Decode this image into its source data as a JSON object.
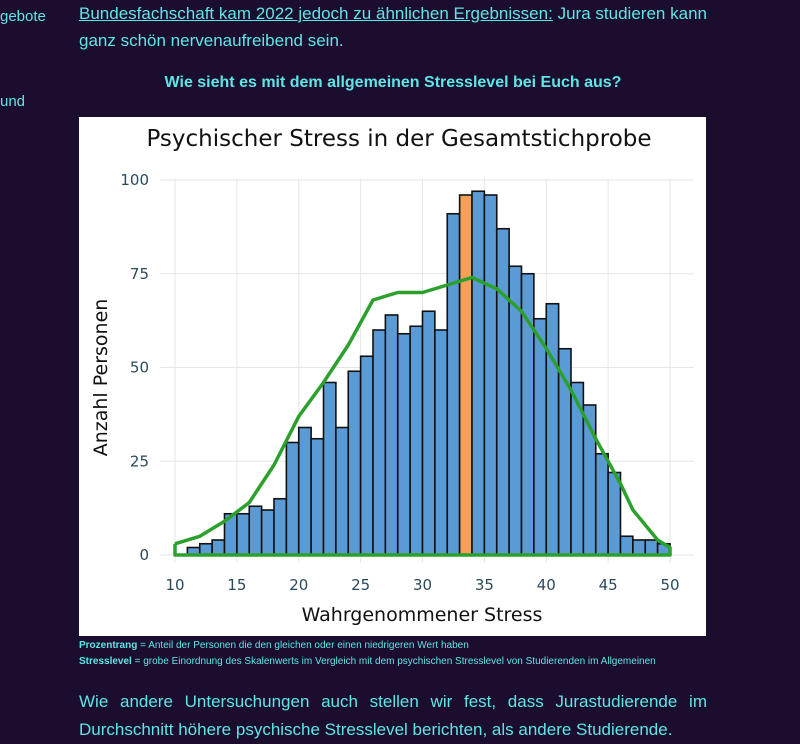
{
  "sidebar": {
    "fragment_1": "gebote",
    "fragment_2": "und"
  },
  "article": {
    "intro_link": "Bundesfachschaft kam 2022 jedoch zu ähnlichen Ergebnissen:",
    "intro_rest": " Jura studieren kann ganz schön nervenaufreibend sein.",
    "question": "Wie sieht es mit dem allgemeinen Stresslevel bei Euch aus?",
    "note1_term": "Prozentrang",
    "note1_text": " = Anteil der Personen die den gleichen oder einen niedrigeren Wert haben",
    "note2_term": "Stresslevel",
    "note2_text": " = grobe Einordnung des Skalenwerts im Vergleich mit dem psychischen Stresslevel von Studierenden im Allgemeinen",
    "outro": "Wie andere Untersuchungen auch stellen wir fest, dass Jurastudierende im Durchschnitt höhere psychische Stresslevel berichten, als andere Studierende."
  },
  "chart_data": {
    "type": "bar",
    "title": "Psychischer Stress in der Gesamtstichprobe",
    "xlabel": "Wahrgenommener Stress",
    "ylabel": "Anzahl Personen",
    "xlim": [
      10,
      50
    ],
    "ylim": [
      0,
      100
    ],
    "x_ticks": [
      10,
      15,
      20,
      25,
      30,
      35,
      40,
      45,
      50
    ],
    "y_ticks": [
      0,
      25,
      50,
      75,
      100
    ],
    "grid": true,
    "bin_width": 1,
    "bins_start": [
      10,
      11,
      12,
      13,
      14,
      15,
      16,
      17,
      18,
      19,
      20,
      21,
      22,
      23,
      24,
      25,
      26,
      27,
      28,
      29,
      30,
      31,
      32,
      33,
      34,
      35,
      36,
      37,
      38,
      39,
      40,
      41,
      42,
      43,
      44,
      45,
      46,
      47,
      48,
      49
    ],
    "values": [
      0,
      2,
      3,
      4,
      11,
      11,
      13,
      12,
      15,
      30,
      34,
      31,
      46,
      34,
      49,
      53,
      60,
      64,
      59,
      61,
      65,
      60,
      91,
      96,
      97,
      96,
      87,
      77,
      75,
      63,
      67,
      55,
      46,
      40,
      27,
      22,
      5,
      4,
      4,
      3
    ],
    "bar_color": "#5b9bd5",
    "highlight_bin_start": 33,
    "highlight_color": "#f4a155",
    "curve_color": "#2ca02c",
    "density_curve": [
      [
        10,
        3
      ],
      [
        12,
        5
      ],
      [
        14,
        9
      ],
      [
        16,
        14
      ],
      [
        18,
        24
      ],
      [
        20,
        37
      ],
      [
        22,
        46
      ],
      [
        24,
        56
      ],
      [
        26,
        68
      ],
      [
        28,
        70
      ],
      [
        30,
        70
      ],
      [
        32,
        72
      ],
      [
        34,
        74
      ],
      [
        36,
        71
      ],
      [
        38,
        65
      ],
      [
        40,
        55
      ],
      [
        42,
        44
      ],
      [
        44,
        31
      ],
      [
        46,
        19
      ],
      [
        47,
        12
      ],
      [
        48,
        8
      ],
      [
        49,
        4
      ],
      [
        50,
        2
      ],
      [
        50,
        0
      ],
      [
        10,
        0
      ],
      [
        10,
        3
      ]
    ]
  }
}
